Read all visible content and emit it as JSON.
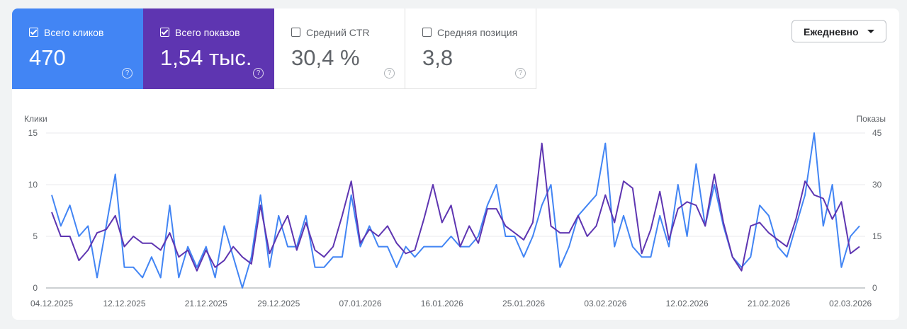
{
  "metrics": [
    {
      "label": "Всего кликов",
      "value": "470",
      "checked": true,
      "help": "?"
    },
    {
      "label": "Всего показов",
      "value": "1,54 тыс.",
      "checked": true,
      "help": "?"
    },
    {
      "label": "Средний CTR",
      "value": "30,4 %",
      "checked": false,
      "help": "?"
    },
    {
      "label": "Средняя позиция",
      "value": "3,8",
      "checked": false,
      "help": "?"
    }
  ],
  "period_dropdown": {
    "label": "Ежедневно"
  },
  "chart_data": {
    "type": "line",
    "left_axis": {
      "label": "Клики",
      "ticks": [
        0,
        5,
        10,
        15
      ],
      "range": [
        0,
        15
      ]
    },
    "right_axis": {
      "label": "Показы",
      "ticks": [
        0,
        15,
        30,
        45
      ],
      "range": [
        0,
        45
      ]
    },
    "x_tick_labels": [
      "04.12.2025",
      "12.12.2025",
      "21.12.2025",
      "29.12.2025",
      "07.01.2026",
      "16.01.2026",
      "25.01.2026",
      "03.02.2026",
      "12.02.2026",
      "21.02.2026",
      "02.03.2026"
    ],
    "x_tick_indices": [
      0,
      8,
      17,
      25,
      34,
      43,
      52,
      61,
      70,
      79,
      88
    ],
    "series": [
      {
        "axis": "left",
        "color": "#4285f4",
        "values": [
          9,
          6,
          8,
          5,
          6,
          1,
          6,
          11,
          2,
          2,
          1,
          3,
          1,
          8,
          1,
          4,
          2,
          4,
          1,
          6,
          3,
          0,
          3,
          9,
          2,
          7,
          4,
          4,
          7,
          2,
          2,
          3,
          3,
          9,
          4,
          6,
          4,
          4,
          2,
          4,
          3,
          4,
          4,
          4,
          5,
          4,
          4,
          5,
          8,
          10,
          5,
          5,
          3,
          5,
          8,
          10,
          2,
          4,
          7,
          8,
          9,
          14,
          4,
          7,
          4,
          3,
          3,
          7,
          4,
          10,
          5,
          12,
          6,
          10,
          6,
          3,
          2,
          3,
          8,
          7,
          4,
          3,
          6,
          9,
          15,
          6,
          10,
          2,
          5,
          6
        ]
      },
      {
        "axis": "right",
        "color": "#5e35b1",
        "values": [
          22,
          15,
          15,
          8,
          11,
          16,
          17,
          21,
          12,
          15,
          13,
          13,
          11,
          16,
          9,
          11,
          5,
          11,
          6,
          8,
          12,
          9,
          7,
          24,
          10,
          16,
          21,
          11,
          19,
          11,
          9,
          12,
          21,
          31,
          13,
          17,
          15,
          18,
          13,
          10,
          11,
          20,
          30,
          19,
          24,
          12,
          18,
          13,
          23,
          23,
          18,
          16,
          14,
          19,
          42,
          18,
          16,
          16,
          21,
          15,
          18,
          27,
          19,
          31,
          29,
          10,
          17,
          28,
          14,
          23,
          25,
          24,
          18,
          33,
          19,
          9,
          5,
          18,
          19,
          16,
          14,
          12,
          20,
          31,
          27,
          26,
          20,
          25,
          10,
          12
        ]
      }
    ]
  }
}
